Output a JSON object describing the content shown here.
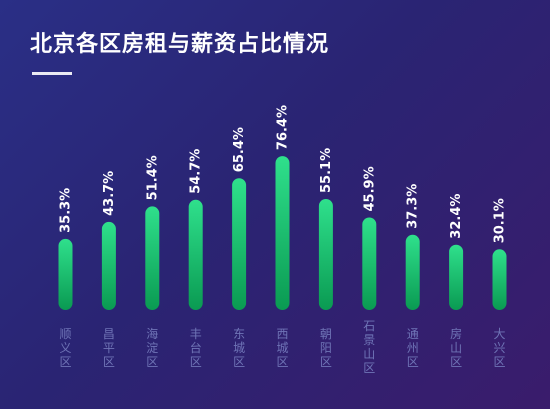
{
  "chart_data": {
    "type": "bar",
    "title": "北京各区房租与薪资占比情况",
    "categories": [
      "顺义区",
      "昌平区",
      "海淀区",
      "丰台区",
      "东城区",
      "西城区",
      "朝阳区",
      "石景山区",
      "通州区",
      "房山区",
      "大兴区"
    ],
    "values": [
      35.3,
      43.7,
      51.4,
      54.7,
      65.4,
      76.4,
      55.1,
      45.9,
      37.3,
      32.4,
      30.1
    ],
    "value_labels": [
      "35.3%",
      "43.7%",
      "51.4%",
      "54.7%",
      "65.4%",
      "76.4%",
      "55.1%",
      "45.9%",
      "37.3%",
      "32.4%",
      "30.1%"
    ],
    "ylim": [
      0,
      100
    ],
    "grid": false,
    "legend": "none",
    "colors": {
      "bar_top": "#2fe08c",
      "bar_bottom": "#0a9a52",
      "label": "#ffffff",
      "category": "#6f74b6"
    }
  }
}
